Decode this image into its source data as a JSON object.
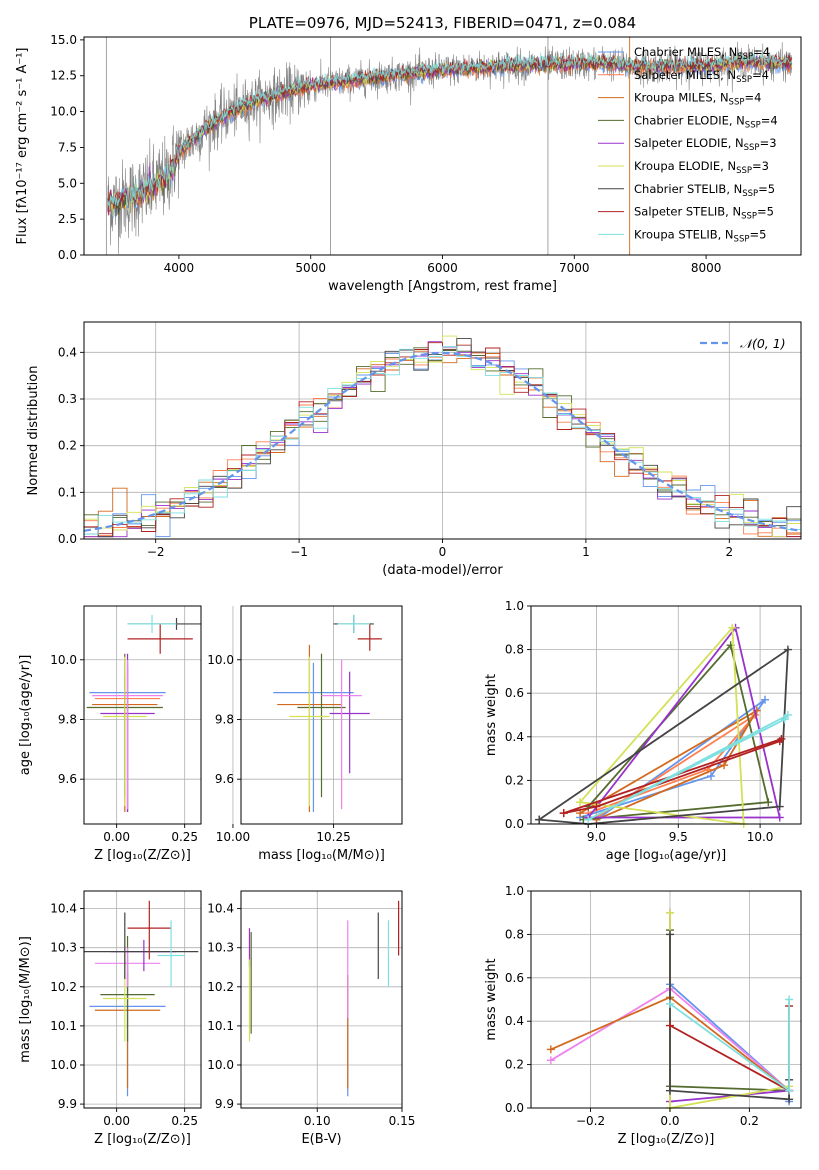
{
  "chart_data": [
    {
      "id": "spectrum",
      "type": "line",
      "title": "PLATE=0976, MJD=52413, FIBERID=0471, z=0.084",
      "xlabel": "wavelength [Angstrom, rest frame]",
      "ylabel": "Flux [fλ10⁻¹⁷ erg cm⁻² s⁻¹ A⁻¹]",
      "xlim": [
        3280,
        8720
      ],
      "ylim": [
        0,
        15.2
      ],
      "xticks": [
        "4000",
        "5000",
        "6000",
        "7000",
        "8000"
      ],
      "yticks": [
        "0.0",
        "2.5",
        "5.0",
        "7.5",
        "10.0",
        "12.5",
        "15.0"
      ],
      "grid": false,
      "legend_position": "upper-right",
      "data_range_x": [
        3460,
        8650
      ],
      "continuum": {
        "x": [
          3460,
          3700,
          3900,
          4000,
          4200,
          4400,
          4600,
          4800,
          5000,
          5200,
          5500,
          6000,
          6500,
          7000,
          7200,
          7500,
          8000,
          8300,
          8650
        ],
        "y": [
          3.5,
          4.2,
          5.3,
          7.2,
          8.8,
          10.0,
          10.8,
          11.3,
          11.8,
          12.0,
          12.4,
          12.9,
          13.2,
          13.3,
          13.4,
          13.1,
          13.2,
          13.5,
          13.3
        ]
      },
      "series": [
        {
          "name": "Chabrier MILES, N",
          "sub": "SSP",
          "suffix": "=4",
          "color": "#6495ed"
        },
        {
          "name": "Salpeter MILES, N",
          "sub": "SSP",
          "suffix": "=4",
          "color": "#ff7f50"
        },
        {
          "name": "Kroupa MILES, N",
          "sub": "SSP",
          "suffix": "=4",
          "color": "#d2691e"
        },
        {
          "name": "Chabrier ELODIE, N",
          "sub": "SSP",
          "suffix": "=4",
          "color": "#556b2f"
        },
        {
          "name": "Salpeter ELODIE, N",
          "sub": "SSP",
          "suffix": "=3",
          "color": "#9932cc"
        },
        {
          "name": "Kroupa ELODIE, N",
          "sub": "SSP",
          "suffix": "=3",
          "color": "#d4e157"
        },
        {
          "name": "Chabrier STELIB, N",
          "sub": "SSP",
          "suffix": "=5",
          "color": "#444444"
        },
        {
          "name": "Salpeter STELIB, N",
          "sub": "SSP",
          "suffix": "=5",
          "color": "#b22222"
        },
        {
          "name": "Kroupa STELIB, N",
          "sub": "SSP",
          "suffix": "=5",
          "color": "#7fe0e0"
        }
      ]
    },
    {
      "id": "residuals",
      "type": "histogram",
      "xlabel": "(data-model)/error",
      "ylabel": "Normed distribution",
      "xlim": [
        -2.5,
        2.5
      ],
      "ylim": [
        0,
        0.465
      ],
      "xticks": [
        "−2",
        "−1",
        "0",
        "1",
        "2"
      ],
      "xtick_values": [
        -2,
        -1,
        0,
        1,
        2
      ],
      "yticks": [
        "0.0",
        "0.1",
        "0.2",
        "0.3",
        "0.4"
      ],
      "ytick_values": [
        0,
        0.1,
        0.2,
        0.3,
        0.4
      ],
      "grid": true,
      "legend_position": "upper-right",
      "legend_label": "𝒩(0, 1)",
      "bin_width": 0.1,
      "gaussian": {
        "mean": 0,
        "sigma": 1,
        "color": "#6495ed"
      },
      "series_colors": [
        "#6495ed",
        "#ff7f50",
        "#d2691e",
        "#556b2f",
        "#9932cc",
        "#d4e157",
        "#444444",
        "#b22222",
        "#7fe0e0"
      ]
    },
    {
      "id": "z-vs-age",
      "type": "errorbar",
      "xlabel": "Z [log₁₀(Z/Z⊙)]",
      "ylabel": "age  [log₁₀(age/yr)]",
      "xlim": [
        -0.12,
        0.31
      ],
      "ylim": [
        9.45,
        10.18
      ],
      "xticks": [
        "0.00",
        "0.25"
      ],
      "xtick_values": [
        0,
        0.25
      ],
      "yticks": [
        "9.6",
        "9.8",
        "10.0"
      ],
      "ytick_values": [
        9.6,
        9.8,
        10.0
      ],
      "grid": true,
      "points": [
        {
          "x": 0.04,
          "xerr": 0.14,
          "y": 9.89,
          "yerr_low": 0.4,
          "yerr_high": 0.1,
          "color": "#6495ed"
        },
        {
          "x": 0.04,
          "xerr": 0.12,
          "y": 9.87,
          "yerr_low": 0.38,
          "yerr_high": 0.1,
          "color": "#ff7f50"
        },
        {
          "x": 0.03,
          "xerr": 0.12,
          "y": 9.85,
          "yerr_low": 0.36,
          "yerr_high": 0.1,
          "color": "#d2691e"
        },
        {
          "x": 0.03,
          "xerr": 0.14,
          "y": 9.84,
          "yerr_low": 0.3,
          "yerr_high": 0.18,
          "color": "#556b2f"
        },
        {
          "x": 0.04,
          "xerr": 0.1,
          "y": 9.82,
          "yerr_low": 0.33,
          "yerr_high": 0.2,
          "color": "#9932cc"
        },
        {
          "x": 0.03,
          "xerr": 0.08,
          "y": 9.81,
          "yerr_low": 0.3,
          "yerr_high": 0.2,
          "color": "#d4e157"
        },
        {
          "x": 0.04,
          "xerr": 0.13,
          "y": 9.88,
          "yerr_low": 0.38,
          "yerr_high": 0.12,
          "color": "#ee82ee"
        },
        {
          "x": 0.22,
          "xerr": 0.18,
          "y": 10.12,
          "yerr_low": 0.02,
          "yerr_high": 0.02,
          "color": "#444444"
        },
        {
          "x": 0.16,
          "xerr": 0.12,
          "y": 10.07,
          "yerr_low": 0.05,
          "yerr_high": 0.05,
          "color": "#b22222"
        },
        {
          "x": 0.13,
          "xerr": 0.09,
          "y": 10.12,
          "yerr_low": 0.03,
          "yerr_high": 0.03,
          "color": "#7fe0e0"
        }
      ]
    },
    {
      "id": "mass-vs-age",
      "type": "errorbar",
      "xlabel": "mass [log₁₀(M/M⊙)]",
      "ylabel": "",
      "xlim": [
        10.02,
        10.42
      ],
      "ylim": [
        9.45,
        10.18
      ],
      "xticks": [
        "10.00",
        "10.25"
      ],
      "xtick_values": [
        10.0,
        10.25
      ],
      "yticks": [
        "9.6",
        "9.8",
        "10.0"
      ],
      "ytick_values": [
        9.6,
        9.8,
        10.0
      ],
      "grid": true,
      "points": [
        {
          "x": 10.2,
          "xerr": 0.1,
          "y": 9.89,
          "yerr_low": 0.4,
          "yerr_high": 0.1,
          "color": "#6495ed"
        },
        {
          "x": 10.19,
          "xerr": 0.08,
          "y": 9.85,
          "yerr_low": 0.36,
          "yerr_high": 0.2,
          "color": "#d2691e"
        },
        {
          "x": 10.22,
          "xerr": 0.06,
          "y": 9.84,
          "yerr_low": 0.3,
          "yerr_high": 0.18,
          "color": "#556b2f"
        },
        {
          "x": 10.29,
          "xerr": 0.05,
          "y": 9.82,
          "yerr_low": 0.2,
          "yerr_high": 0.14,
          "color": "#9932cc"
        },
        {
          "x": 10.19,
          "xerr": 0.05,
          "y": 9.81,
          "yerr_low": 0.3,
          "yerr_high": 0.2,
          "color": "#d4e157"
        },
        {
          "x": 10.27,
          "xerr": 0.05,
          "y": 9.88,
          "yerr_low": 0.38,
          "yerr_high": 0.12,
          "color": "#ee82ee"
        },
        {
          "x": 10.3,
          "xerr": 0.05,
          "y": 10.12,
          "yerr_low": 0.03,
          "yerr_high": 0.03,
          "color": "#444444"
        },
        {
          "x": 10.34,
          "xerr": 0.03,
          "y": 10.07,
          "yerr_low": 0.04,
          "yerr_high": 0.05,
          "color": "#b22222"
        },
        {
          "x": 10.3,
          "xerr": 0.04,
          "y": 10.12,
          "yerr_low": 0.03,
          "yerr_high": 0.03,
          "color": "#7fe0e0"
        }
      ]
    },
    {
      "id": "age-vs-massweight",
      "type": "line",
      "xlabel": "age  [log₁₀(age/yr)]",
      "ylabel": "mass weight",
      "xlim": [
        8.6,
        10.25
      ],
      "ylim": [
        0,
        1.0
      ],
      "xticks": [
        "9.0",
        "9.5",
        "10.0"
      ],
      "xtick_values": [
        9.0,
        9.5,
        10.0
      ],
      "yticks": [
        "0.0",
        "0.2",
        "0.4",
        "0.6",
        "0.8",
        "1.0"
      ],
      "ytick_values": [
        0,
        0.2,
        0.4,
        0.6,
        0.8,
        1.0
      ],
      "grid": true,
      "series": [
        {
          "color": "#6495ed",
          "x": [
            8.9,
            9.7,
            10.03,
            9.0
          ],
          "y": [
            0.03,
            0.22,
            0.57,
            0.02
          ]
        },
        {
          "color": "#ff7f50",
          "x": [
            8.95,
            9.68,
            9.97,
            9.0
          ],
          "y": [
            0.05,
            0.25,
            0.5,
            0.03
          ]
        },
        {
          "color": "#d2691e",
          "x": [
            9.0,
            9.78,
            9.98,
            8.9
          ],
          "y": [
            0.02,
            0.27,
            0.52,
            0.05
          ]
        },
        {
          "color": "#556b2f",
          "x": [
            8.95,
            9.82,
            10.05,
            8.92
          ],
          "y": [
            0.08,
            0.82,
            0.1,
            0.02
          ]
        },
        {
          "color": "#9932cc",
          "x": [
            8.95,
            9.85,
            10.12,
            8.95
          ],
          "y": [
            0.03,
            0.9,
            0.03,
            0.03
          ]
        },
        {
          "color": "#d4e157",
          "x": [
            8.9,
            9.83,
            9.9,
            8.9
          ],
          "y": [
            0.1,
            0.9,
            0.0,
            0.1
          ]
        },
        {
          "color": "#444444",
          "x": [
            8.65,
            8.95,
            10.12,
            10.17,
            8.65
          ],
          "y": [
            0.02,
            0.0,
            0.08,
            0.8,
            0.02
          ]
        },
        {
          "color": "#b22222",
          "x": [
            8.8,
            9.0,
            10.12,
            10.13,
            8.8
          ],
          "y": [
            0.05,
            0.08,
            0.38,
            0.39,
            0.05
          ]
        },
        {
          "color": "#7fe0e0",
          "x": [
            8.95,
            10.15,
            10.17,
            8.95
          ],
          "y": [
            0.02,
            0.48,
            0.5,
            0.02
          ]
        }
      ]
    },
    {
      "id": "z-vs-mass",
      "type": "errorbar",
      "xlabel": "Z [log₁₀(Z/Z⊙)]",
      "ylabel": "mass [log₁₀(M/M⊙)]",
      "xlim": [
        -0.12,
        0.31
      ],
      "ylim": [
        9.89,
        10.445
      ],
      "xticks": [
        "0.00",
        "0.25"
      ],
      "xtick_values": [
        0,
        0.25
      ],
      "yticks": [
        "9.9",
        "10.0",
        "10.1",
        "10.2",
        "10.3",
        "10.4"
      ],
      "ytick_values": [
        9.9,
        10.0,
        10.1,
        10.2,
        10.3,
        10.4
      ],
      "grid": true,
      "points": [
        {
          "x": 0.04,
          "xerr": 0.14,
          "y": 10.15,
          "yerr_low": 0.23,
          "yerr_high": 0.12,
          "color": "#6495ed"
        },
        {
          "x": 0.04,
          "xerr": 0.12,
          "y": 10.14,
          "yerr_low": 0.2,
          "yerr_high": 0.1,
          "color": "#d2691e"
        },
        {
          "x": 0.04,
          "xerr": 0.1,
          "y": 10.18,
          "yerr_low": 0.12,
          "yerr_high": 0.15,
          "color": "#556b2f"
        },
        {
          "x": 0.03,
          "xerr": 0.08,
          "y": 10.17,
          "yerr_low": 0.11,
          "yerr_high": 0.12,
          "color": "#d4e157"
        },
        {
          "x": 0.04,
          "xerr": 0.12,
          "y": 10.26,
          "yerr_low": 0.06,
          "yerr_high": 0.04,
          "color": "#ee82ee"
        },
        {
          "x": 0.1,
          "xerr": 0.12,
          "y": 10.29,
          "yerr_low": 0.05,
          "yerr_high": 0.03,
          "color": "#9932cc"
        },
        {
          "x": 0.03,
          "xerr": 0.27,
          "y": 10.29,
          "yerr_low": 0.07,
          "yerr_high": 0.1,
          "color": "#444444"
        },
        {
          "x": 0.12,
          "xerr": 0.08,
          "y": 10.35,
          "yerr_low": 0.08,
          "yerr_high": 0.07,
          "color": "#b22222"
        },
        {
          "x": 0.2,
          "xerr": 0.05,
          "y": 10.28,
          "yerr_low": 0.08,
          "yerr_high": 0.09,
          "color": "#7fe0e0"
        }
      ]
    },
    {
      "id": "ebv-vs-mass",
      "type": "errorbar",
      "xlabel": "E(B-V)",
      "ylabel": "",
      "xlim": [
        0.055,
        0.15
      ],
      "ylim": [
        9.89,
        10.445
      ],
      "xticks": [
        "0.10",
        "0.15"
      ],
      "xtick_values": [
        0.1,
        0.15
      ],
      "yticks": [
        "9.9",
        "10.0",
        "10.1",
        "10.2",
        "10.3",
        "10.4"
      ],
      "ytick_values": [
        9.9,
        10.0,
        10.1,
        10.2,
        10.3,
        10.4
      ],
      "grid": true,
      "points": [
        {
          "x": 0.118,
          "xerr": 0,
          "y": 10.15,
          "yerr_low": 0.23,
          "yerr_high": 0.08,
          "color": "#6495ed"
        },
        {
          "x": 0.118,
          "xerr": 0,
          "y": 10.13,
          "yerr_low": 0.19,
          "yerr_high": 0.1,
          "color": "#d2691e"
        },
        {
          "x": 0.061,
          "xerr": 0,
          "y": 10.2,
          "yerr_low": 0.12,
          "yerr_high": 0.14,
          "color": "#556b2f"
        },
        {
          "x": 0.06,
          "xerr": 0,
          "y": 10.3,
          "yerr_low": 0.05,
          "yerr_high": 0.05,
          "color": "#9932cc"
        },
        {
          "x": 0.06,
          "xerr": 0,
          "y": 10.17,
          "yerr_low": 0.11,
          "yerr_high": 0.1,
          "color": "#d4e157"
        },
        {
          "x": 0.118,
          "xerr": 0,
          "y": 10.22,
          "yerr_low": 0.1,
          "yerr_high": 0.15,
          "color": "#ee82ee"
        },
        {
          "x": 0.136,
          "xerr": 0,
          "y": 10.3,
          "yerr_low": 0.08,
          "yerr_high": 0.09,
          "color": "#444444"
        },
        {
          "x": 0.148,
          "xerr": 0,
          "y": 10.35,
          "yerr_low": 0.07,
          "yerr_high": 0.07,
          "color": "#b22222"
        },
        {
          "x": 0.142,
          "xerr": 0,
          "y": 10.28,
          "yerr_low": 0.08,
          "yerr_high": 0.09,
          "color": "#7fe0e0"
        }
      ]
    },
    {
      "id": "z-vs-massweight",
      "type": "line",
      "xlabel": "Z [log₁₀(Z/Z⊙)]",
      "ylabel": "mass weight",
      "xlim": [
        -0.35,
        0.33
      ],
      "ylim": [
        0,
        1.0
      ],
      "xticks": [
        "−0.2",
        "0.0",
        "0.2"
      ],
      "xtick_values": [
        -0.2,
        0,
        0.2
      ],
      "yticks": [
        "0.0",
        "0.2",
        "0.4",
        "0.6",
        "0.8",
        "1.0"
      ],
      "ytick_values": [
        0,
        0.2,
        0.4,
        0.6,
        0.8,
        1.0
      ],
      "grid": true,
      "series": [
        {
          "color": "#6495ed",
          "x": [
            0.0,
            0.3,
            0.3
          ],
          "y": [
            0.57,
            0.08,
            0.03
          ]
        },
        {
          "color": "#ee82ee",
          "x": [
            -0.3,
            0.0,
            0.3
          ],
          "y": [
            0.22,
            0.55,
            0.08
          ]
        },
        {
          "color": "#d2691e",
          "x": [
            -0.3,
            0.0,
            0.3
          ],
          "y": [
            0.27,
            0.51,
            0.08
          ]
        },
        {
          "color": "#556b2f",
          "x": [
            0.0,
            0.0,
            0.3
          ],
          "y": [
            0.82,
            0.1,
            0.08
          ]
        },
        {
          "color": "#9932cc",
          "x": [
            0.0,
            0.0,
            0.3
          ],
          "y": [
            0.9,
            0.03,
            0.08
          ]
        },
        {
          "color": "#d4e157",
          "x": [
            0.0,
            0.0,
            0.3
          ],
          "y": [
            0.9,
            0.0,
            0.1
          ]
        },
        {
          "color": "#444444",
          "x": [
            0.0,
            0.0,
            0.3,
            0.3
          ],
          "y": [
            0.8,
            0.08,
            0.04,
            0.13
          ]
        },
        {
          "color": "#b22222",
          "x": [
            0.0,
            0.3,
            0.3
          ],
          "y": [
            0.38,
            0.08,
            0.47
          ]
        },
        {
          "color": "#7fe0e0",
          "x": [
            0.0,
            0.3,
            0.3
          ],
          "y": [
            0.48,
            0.08,
            0.5
          ]
        }
      ]
    }
  ]
}
